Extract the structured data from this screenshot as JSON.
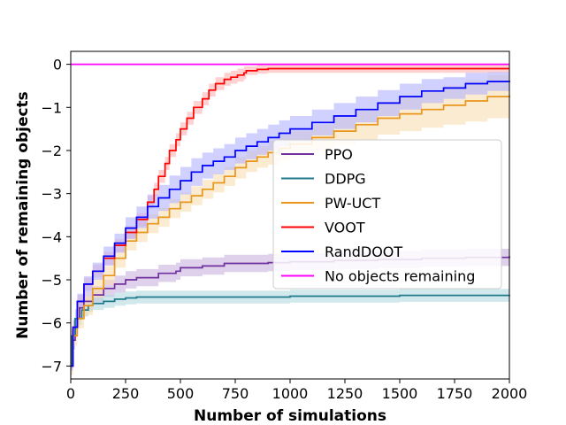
{
  "chart_data": {
    "type": "line",
    "xlabel": "Number of simulations",
    "ylabel": "Number of remaining objects",
    "xlim": [
      0,
      2000
    ],
    "ylim": [
      -7.3,
      0.3
    ],
    "xticks": [
      0,
      250,
      500,
      750,
      1000,
      1250,
      1500,
      1750,
      2000
    ],
    "yticks": [
      0,
      -1,
      -2,
      -3,
      -4,
      -5,
      -6,
      -7
    ],
    "legend_position": "center-right",
    "grid": false,
    "series": [
      {
        "name": "PPO",
        "color": "#7030a0",
        "band_color": "#c9b3dd",
        "x": [
          0,
          5,
          20,
          40,
          60,
          100,
          150,
          200,
          250,
          300,
          400,
          480,
          500,
          600,
          700,
          900,
          1000,
          1200,
          1400,
          1600,
          1800,
          2000
        ],
        "y": [
          -7.0,
          -6.4,
          -5.9,
          -5.65,
          -5.5,
          -5.35,
          -5.2,
          -5.1,
          -5.0,
          -4.95,
          -4.85,
          -4.8,
          -4.72,
          -4.68,
          -4.62,
          -4.6,
          -4.58,
          -4.55,
          -4.53,
          -4.5,
          -4.48,
          -4.45
        ],
        "band": [
          0.22,
          0.22,
          0.22,
          0.22,
          0.22,
          0.2,
          0.2,
          0.2,
          0.2,
          0.2,
          0.2,
          0.2,
          0.2,
          0.2,
          0.2,
          0.2,
          0.2,
          0.2,
          0.2,
          0.2,
          0.2,
          0.2
        ]
      },
      {
        "name": "DDPG",
        "color": "#1f7a8c",
        "band_color": "#b3d8df",
        "x": [
          0,
          5,
          20,
          50,
          80,
          100,
          150,
          200,
          250,
          300,
          500,
          1000,
          1500,
          2000
        ],
        "y": [
          -7.0,
          -6.3,
          -5.9,
          -5.7,
          -5.6,
          -5.55,
          -5.5,
          -5.45,
          -5.42,
          -5.4,
          -5.4,
          -5.38,
          -5.36,
          -5.35
        ],
        "band": [
          0.15,
          0.15,
          0.15,
          0.15,
          0.15,
          0.15,
          0.15,
          0.15,
          0.15,
          0.15,
          0.15,
          0.15,
          0.15,
          0.15
        ]
      },
      {
        "name": "PW-UCT",
        "color": "#e8961c",
        "band_color": "#f8ddb0",
        "x": [
          0,
          10,
          30,
          60,
          100,
          150,
          200,
          250,
          300,
          350,
          400,
          450,
          500,
          550,
          600,
          650,
          700,
          750,
          800,
          850,
          900,
          950,
          1000,
          1100,
          1200,
          1300,
          1400,
          1500,
          1600,
          1700,
          1800,
          1900,
          2000
        ],
        "y": [
          -7.0,
          -6.3,
          -5.9,
          -5.6,
          -5.2,
          -4.9,
          -4.5,
          -4.1,
          -3.9,
          -3.7,
          -3.55,
          -3.35,
          -3.2,
          -3.05,
          -2.9,
          -2.75,
          -2.6,
          -2.4,
          -2.25,
          -2.15,
          -2.05,
          -1.95,
          -1.85,
          -1.7,
          -1.55,
          -1.4,
          -1.25,
          -1.15,
          -1.05,
          -0.95,
          -0.85,
          -0.75,
          -0.72
        ],
        "band": [
          0.2,
          0.22,
          0.22,
          0.22,
          0.22,
          0.22,
          0.22,
          0.22,
          0.22,
          0.22,
          0.22,
          0.22,
          0.22,
          0.22,
          0.22,
          0.22,
          0.22,
          0.25,
          0.25,
          0.25,
          0.28,
          0.3,
          0.3,
          0.3,
          0.32,
          0.35,
          0.38,
          0.4,
          0.42,
          0.45,
          0.48,
          0.5,
          0.5
        ]
      },
      {
        "name": "VOOT",
        "color": "#ff0000",
        "band_color": "#ffb3b3",
        "x": [
          0,
          10,
          30,
          60,
          100,
          150,
          200,
          250,
          300,
          350,
          380,
          400,
          430,
          450,
          480,
          500,
          530,
          560,
          600,
          630,
          660,
          700,
          730,
          760,
          790,
          800,
          850,
          900,
          1000,
          1200,
          1500,
          1800,
          2000
        ],
        "y": [
          -7.0,
          -6.1,
          -5.5,
          -5.1,
          -4.8,
          -4.5,
          -4.2,
          -3.9,
          -3.6,
          -3.2,
          -2.9,
          -2.6,
          -2.3,
          -2.0,
          -1.75,
          -1.5,
          -1.25,
          -1.0,
          -0.8,
          -0.6,
          -0.45,
          -0.35,
          -0.3,
          -0.25,
          -0.2,
          -0.15,
          -0.12,
          -0.1,
          -0.1,
          -0.1,
          -0.1,
          -0.1,
          -0.1
        ],
        "band": [
          0.1,
          0.15,
          0.15,
          0.15,
          0.15,
          0.15,
          0.15,
          0.15,
          0.15,
          0.15,
          0.15,
          0.15,
          0.15,
          0.15,
          0.15,
          0.15,
          0.15,
          0.15,
          0.15,
          0.15,
          0.15,
          0.15,
          0.15,
          0.15,
          0.15,
          0.1,
          0.1,
          0.1,
          0.1,
          0.1,
          0.1,
          0.1,
          0.1
        ]
      },
      {
        "name": "RandDOOT",
        "color": "#0000ff",
        "band_color": "#b3b3ff",
        "x": [
          0,
          10,
          30,
          60,
          100,
          150,
          200,
          250,
          300,
          350,
          400,
          450,
          500,
          550,
          600,
          650,
          700,
          750,
          800,
          850,
          900,
          950,
          1000,
          1100,
          1200,
          1300,
          1400,
          1500,
          1600,
          1700,
          1800,
          1900,
          2000
        ],
        "y": [
          -7.0,
          -6.1,
          -5.5,
          -5.1,
          -4.8,
          -4.45,
          -4.15,
          -3.8,
          -3.55,
          -3.3,
          -3.1,
          -2.9,
          -2.7,
          -2.5,
          -2.35,
          -2.25,
          -2.15,
          -2.0,
          -1.9,
          -1.8,
          -1.7,
          -1.6,
          -1.5,
          -1.35,
          -1.2,
          -1.05,
          -0.9,
          -0.75,
          -0.62,
          -0.55,
          -0.45,
          -0.4,
          -0.38
        ],
        "band": [
          0.1,
          0.18,
          0.18,
          0.18,
          0.2,
          0.22,
          0.22,
          0.25,
          0.25,
          0.28,
          0.3,
          0.32,
          0.32,
          0.32,
          0.3,
          0.3,
          0.3,
          0.3,
          0.3,
          0.3,
          0.3,
          0.3,
          0.3,
          0.3,
          0.3,
          0.3,
          0.3,
          0.3,
          0.28,
          0.25,
          0.25,
          0.22,
          0.2
        ]
      },
      {
        "name": "No objects remaining",
        "color": "#ff00ff",
        "x": [
          0,
          2000
        ],
        "y": [
          0,
          0
        ]
      }
    ]
  }
}
